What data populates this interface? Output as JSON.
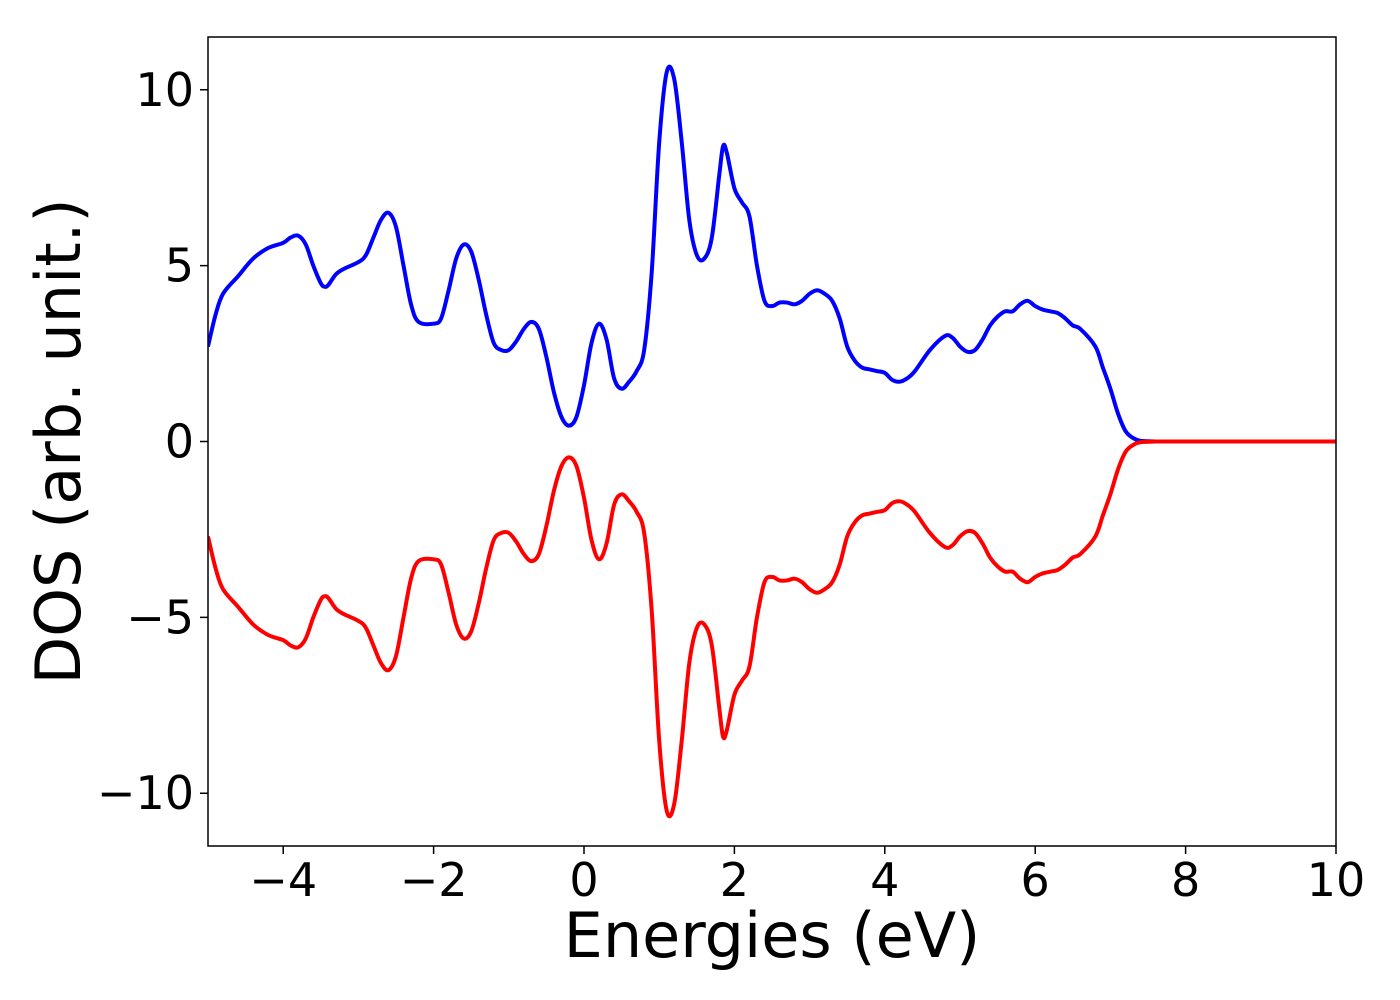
{
  "chart_data": {
    "type": "line",
    "title": "",
    "xlabel": "Energies (eV)",
    "ylabel": "DOS (arb. unit.)",
    "xlim": [
      -5,
      10
    ],
    "ylim": [
      -11.5,
      11.5
    ],
    "xticks": [
      -4,
      -2,
      0,
      2,
      4,
      6,
      8,
      10
    ],
    "xtick_labels": [
      "−4",
      "−2",
      "0",
      "2",
      "4",
      "6",
      "8",
      "10"
    ],
    "yticks": [
      10,
      5,
      0,
      -5,
      -10
    ],
    "ytick_labels": [
      "10",
      "5",
      "0",
      "−5",
      "−10"
    ],
    "grid": false,
    "legend": "none",
    "series": [
      {
        "color": "#0000ff",
        "x": [
          -5.0,
          -4.9,
          -4.8,
          -4.6,
          -4.4,
          -4.2,
          -4.0,
          -3.9,
          -3.8,
          -3.7,
          -3.6,
          -3.5,
          -3.45,
          -3.4,
          -3.3,
          -3.2,
          -3.0,
          -2.9,
          -2.8,
          -2.7,
          -2.6,
          -2.5,
          -2.4,
          -2.3,
          -2.2,
          -2.0,
          -1.9,
          -1.8,
          -1.7,
          -1.6,
          -1.5,
          -1.4,
          -1.3,
          -1.2,
          -1.1,
          -1.0,
          -0.9,
          -0.8,
          -0.7,
          -0.6,
          -0.5,
          -0.4,
          -0.3,
          -0.2,
          -0.1,
          0.0,
          0.1,
          0.2,
          0.3,
          0.4,
          0.5,
          0.6,
          0.7,
          0.8,
          0.9,
          1.0,
          1.1,
          1.2,
          1.3,
          1.4,
          1.5,
          1.6,
          1.7,
          1.8,
          1.85,
          1.9,
          2.0,
          2.1,
          2.2,
          2.3,
          2.4,
          2.5,
          2.6,
          2.7,
          2.8,
          2.9,
          3.0,
          3.1,
          3.2,
          3.3,
          3.4,
          3.5,
          3.6,
          3.7,
          3.8,
          3.9,
          4.0,
          4.1,
          4.2,
          4.3,
          4.4,
          4.6,
          4.8,
          4.9,
          5.0,
          5.1,
          5.2,
          5.3,
          5.4,
          5.5,
          5.6,
          5.7,
          5.8,
          5.9,
          6.0,
          6.1,
          6.2,
          6.3,
          6.4,
          6.5,
          6.6,
          6.8,
          6.9,
          7.0,
          7.1,
          7.2,
          7.3,
          7.4,
          7.6,
          7.7,
          7.8,
          7.9,
          8.0,
          8.1,
          8.2,
          8.3,
          8.4,
          8.5,
          8.6,
          8.7,
          8.8,
          8.9,
          9.0,
          9.2,
          9.5,
          10.0
        ],
        "y": [
          2.7,
          3.6,
          4.2,
          4.7,
          5.2,
          5.5,
          5.65,
          5.8,
          5.85,
          5.6,
          5.0,
          4.5,
          4.4,
          4.45,
          4.75,
          4.9,
          5.1,
          5.3,
          5.8,
          6.3,
          6.5,
          6.1,
          5.0,
          3.9,
          3.4,
          3.35,
          3.5,
          4.3,
          5.2,
          5.6,
          5.4,
          4.6,
          3.6,
          2.8,
          2.6,
          2.6,
          2.85,
          3.2,
          3.4,
          3.2,
          2.4,
          1.4,
          0.7,
          0.45,
          0.7,
          1.6,
          2.8,
          3.35,
          2.9,
          1.8,
          1.5,
          1.7,
          2.0,
          2.6,
          4.8,
          8.5,
          10.5,
          10.3,
          8.5,
          6.3,
          5.3,
          5.2,
          5.8,
          7.6,
          8.4,
          8.2,
          7.2,
          6.8,
          6.4,
          5.0,
          4.0,
          3.85,
          3.95,
          3.95,
          3.9,
          4.0,
          4.2,
          4.3,
          4.2,
          4.0,
          3.5,
          2.7,
          2.3,
          2.1,
          2.05,
          2.0,
          1.95,
          1.75,
          1.7,
          1.8,
          2.0,
          2.6,
          3.0,
          2.95,
          2.7,
          2.55,
          2.6,
          2.9,
          3.3,
          3.55,
          3.7,
          3.7,
          3.9,
          4.0,
          3.85,
          3.75,
          3.7,
          3.65,
          3.5,
          3.3,
          3.2,
          2.7,
          2.1,
          1.5,
          0.8,
          0.3,
          0.1,
          0.02,
          0.0,
          0.0,
          0.0,
          0.0,
          0.0,
          0.0,
          0.0,
          0.0,
          0.0,
          0.0,
          0.0,
          0.0,
          0.0,
          0.0,
          0.0,
          0.0,
          0.0,
          0.0
        ]
      },
      {
        "color": "#ff0000",
        "x": [
          -5.0,
          -4.9,
          -4.8,
          -4.6,
          -4.4,
          -4.2,
          -4.0,
          -3.9,
          -3.8,
          -3.7,
          -3.6,
          -3.5,
          -3.45,
          -3.4,
          -3.3,
          -3.2,
          -3.0,
          -2.9,
          -2.8,
          -2.7,
          -2.6,
          -2.5,
          -2.4,
          -2.3,
          -2.2,
          -2.0,
          -1.9,
          -1.8,
          -1.7,
          -1.6,
          -1.5,
          -1.4,
          -1.3,
          -1.2,
          -1.1,
          -1.0,
          -0.9,
          -0.8,
          -0.7,
          -0.6,
          -0.5,
          -0.4,
          -0.3,
          -0.2,
          -0.1,
          0.0,
          0.1,
          0.2,
          0.3,
          0.4,
          0.5,
          0.6,
          0.7,
          0.8,
          0.9,
          1.0,
          1.1,
          1.2,
          1.3,
          1.4,
          1.5,
          1.6,
          1.7,
          1.8,
          1.85,
          1.9,
          2.0,
          2.1,
          2.2,
          2.3,
          2.4,
          2.5,
          2.6,
          2.7,
          2.8,
          2.9,
          3.0,
          3.1,
          3.2,
          3.3,
          3.4,
          3.5,
          3.6,
          3.7,
          3.8,
          3.9,
          4.0,
          4.1,
          4.2,
          4.3,
          4.4,
          4.6,
          4.8,
          4.9,
          5.0,
          5.1,
          5.2,
          5.3,
          5.4,
          5.5,
          5.6,
          5.7,
          5.8,
          5.9,
          6.0,
          6.1,
          6.2,
          6.3,
          6.4,
          6.5,
          6.6,
          6.8,
          6.9,
          7.0,
          7.1,
          7.2,
          7.3,
          7.4,
          7.6,
          7.7,
          7.8,
          7.9,
          8.0,
          8.1,
          8.2,
          8.3,
          8.4,
          8.5,
          8.6,
          8.7,
          8.8,
          8.9,
          9.0,
          9.2,
          9.5,
          10.0
        ],
        "y": [
          -2.7,
          -3.6,
          -4.2,
          -4.7,
          -5.2,
          -5.5,
          -5.65,
          -5.8,
          -5.85,
          -5.6,
          -5.0,
          -4.5,
          -4.4,
          -4.45,
          -4.75,
          -4.9,
          -5.1,
          -5.3,
          -5.8,
          -6.3,
          -6.5,
          -6.1,
          -5.0,
          -3.9,
          -3.4,
          -3.35,
          -3.5,
          -4.3,
          -5.2,
          -5.6,
          -5.4,
          -4.6,
          -3.6,
          -2.8,
          -2.6,
          -2.6,
          -2.85,
          -3.2,
          -3.4,
          -3.2,
          -2.4,
          -1.4,
          -0.7,
          -0.45,
          -0.7,
          -1.6,
          -2.8,
          -3.35,
          -2.9,
          -1.8,
          -1.5,
          -1.7,
          -2.0,
          -2.6,
          -4.8,
          -8.5,
          -10.5,
          -10.3,
          -8.5,
          -6.3,
          -5.3,
          -5.2,
          -5.8,
          -7.6,
          -8.4,
          -8.2,
          -7.2,
          -6.8,
          -6.4,
          -5.0,
          -4.0,
          -3.85,
          -3.95,
          -3.95,
          -3.9,
          -4.0,
          -4.2,
          -4.3,
          -4.2,
          -4.0,
          -3.5,
          -2.7,
          -2.3,
          -2.1,
          -2.05,
          -2.0,
          -1.95,
          -1.75,
          -1.7,
          -1.8,
          -2.0,
          -2.6,
          -3.0,
          -2.95,
          -2.7,
          -2.55,
          -2.6,
          -2.9,
          -3.3,
          -3.55,
          -3.7,
          -3.7,
          -3.9,
          -4.0,
          -3.85,
          -3.75,
          -3.7,
          -3.65,
          -3.5,
          -3.3,
          -3.2,
          -2.7,
          -2.1,
          -1.5,
          -0.8,
          -0.3,
          -0.1,
          -0.02,
          0.0,
          0.0,
          0.0,
          0.0,
          0.0,
          0.0,
          0.0,
          0.0,
          0.0,
          0.0,
          0.0,
          0.0,
          0.0,
          0.0,
          0.0,
          0.0,
          0.0,
          0.0
        ]
      }
    ]
  }
}
